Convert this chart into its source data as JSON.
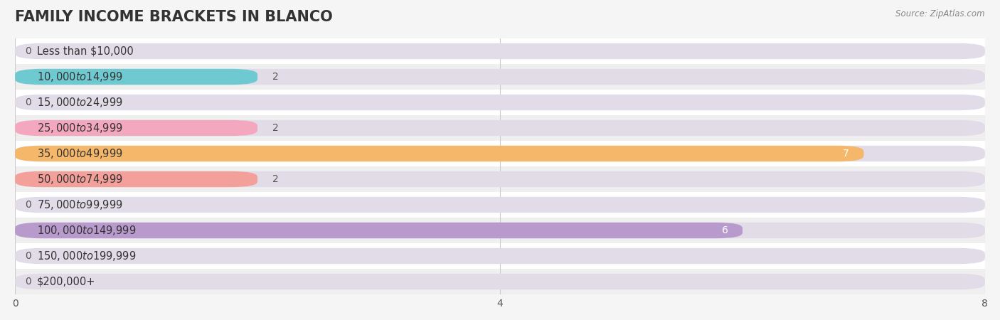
{
  "title": "FAMILY INCOME BRACKETS IN BLANCO",
  "source": "Source: ZipAtlas.com",
  "categories": [
    "Less than $10,000",
    "$10,000 to $14,999",
    "$15,000 to $24,999",
    "$25,000 to $34,999",
    "$35,000 to $49,999",
    "$50,000 to $74,999",
    "$75,000 to $99,999",
    "$100,000 to $149,999",
    "$150,000 to $199,999",
    "$200,000+"
  ],
  "values": [
    0,
    2,
    0,
    2,
    7,
    2,
    0,
    6,
    0,
    0
  ],
  "bar_colors": [
    "#c9b8d8",
    "#6ecad0",
    "#b0b8e8",
    "#f4a8c0",
    "#f5b86a",
    "#f4a09a",
    "#a8c4e8",
    "#b89acc",
    "#6ecad0",
    "#c0b8e0"
  ],
  "background_color": "#f5f5f5",
  "row_colors": [
    "#ffffff",
    "#efefef"
  ],
  "bar_bg_color": "#e2dce8",
  "xlim": [
    0,
    8
  ],
  "xticks": [
    0,
    4,
    8
  ],
  "title_fontsize": 15,
  "label_fontsize": 10.5,
  "value_fontsize": 10,
  "bar_height": 0.62,
  "fig_width": 14.06,
  "fig_height": 4.5
}
